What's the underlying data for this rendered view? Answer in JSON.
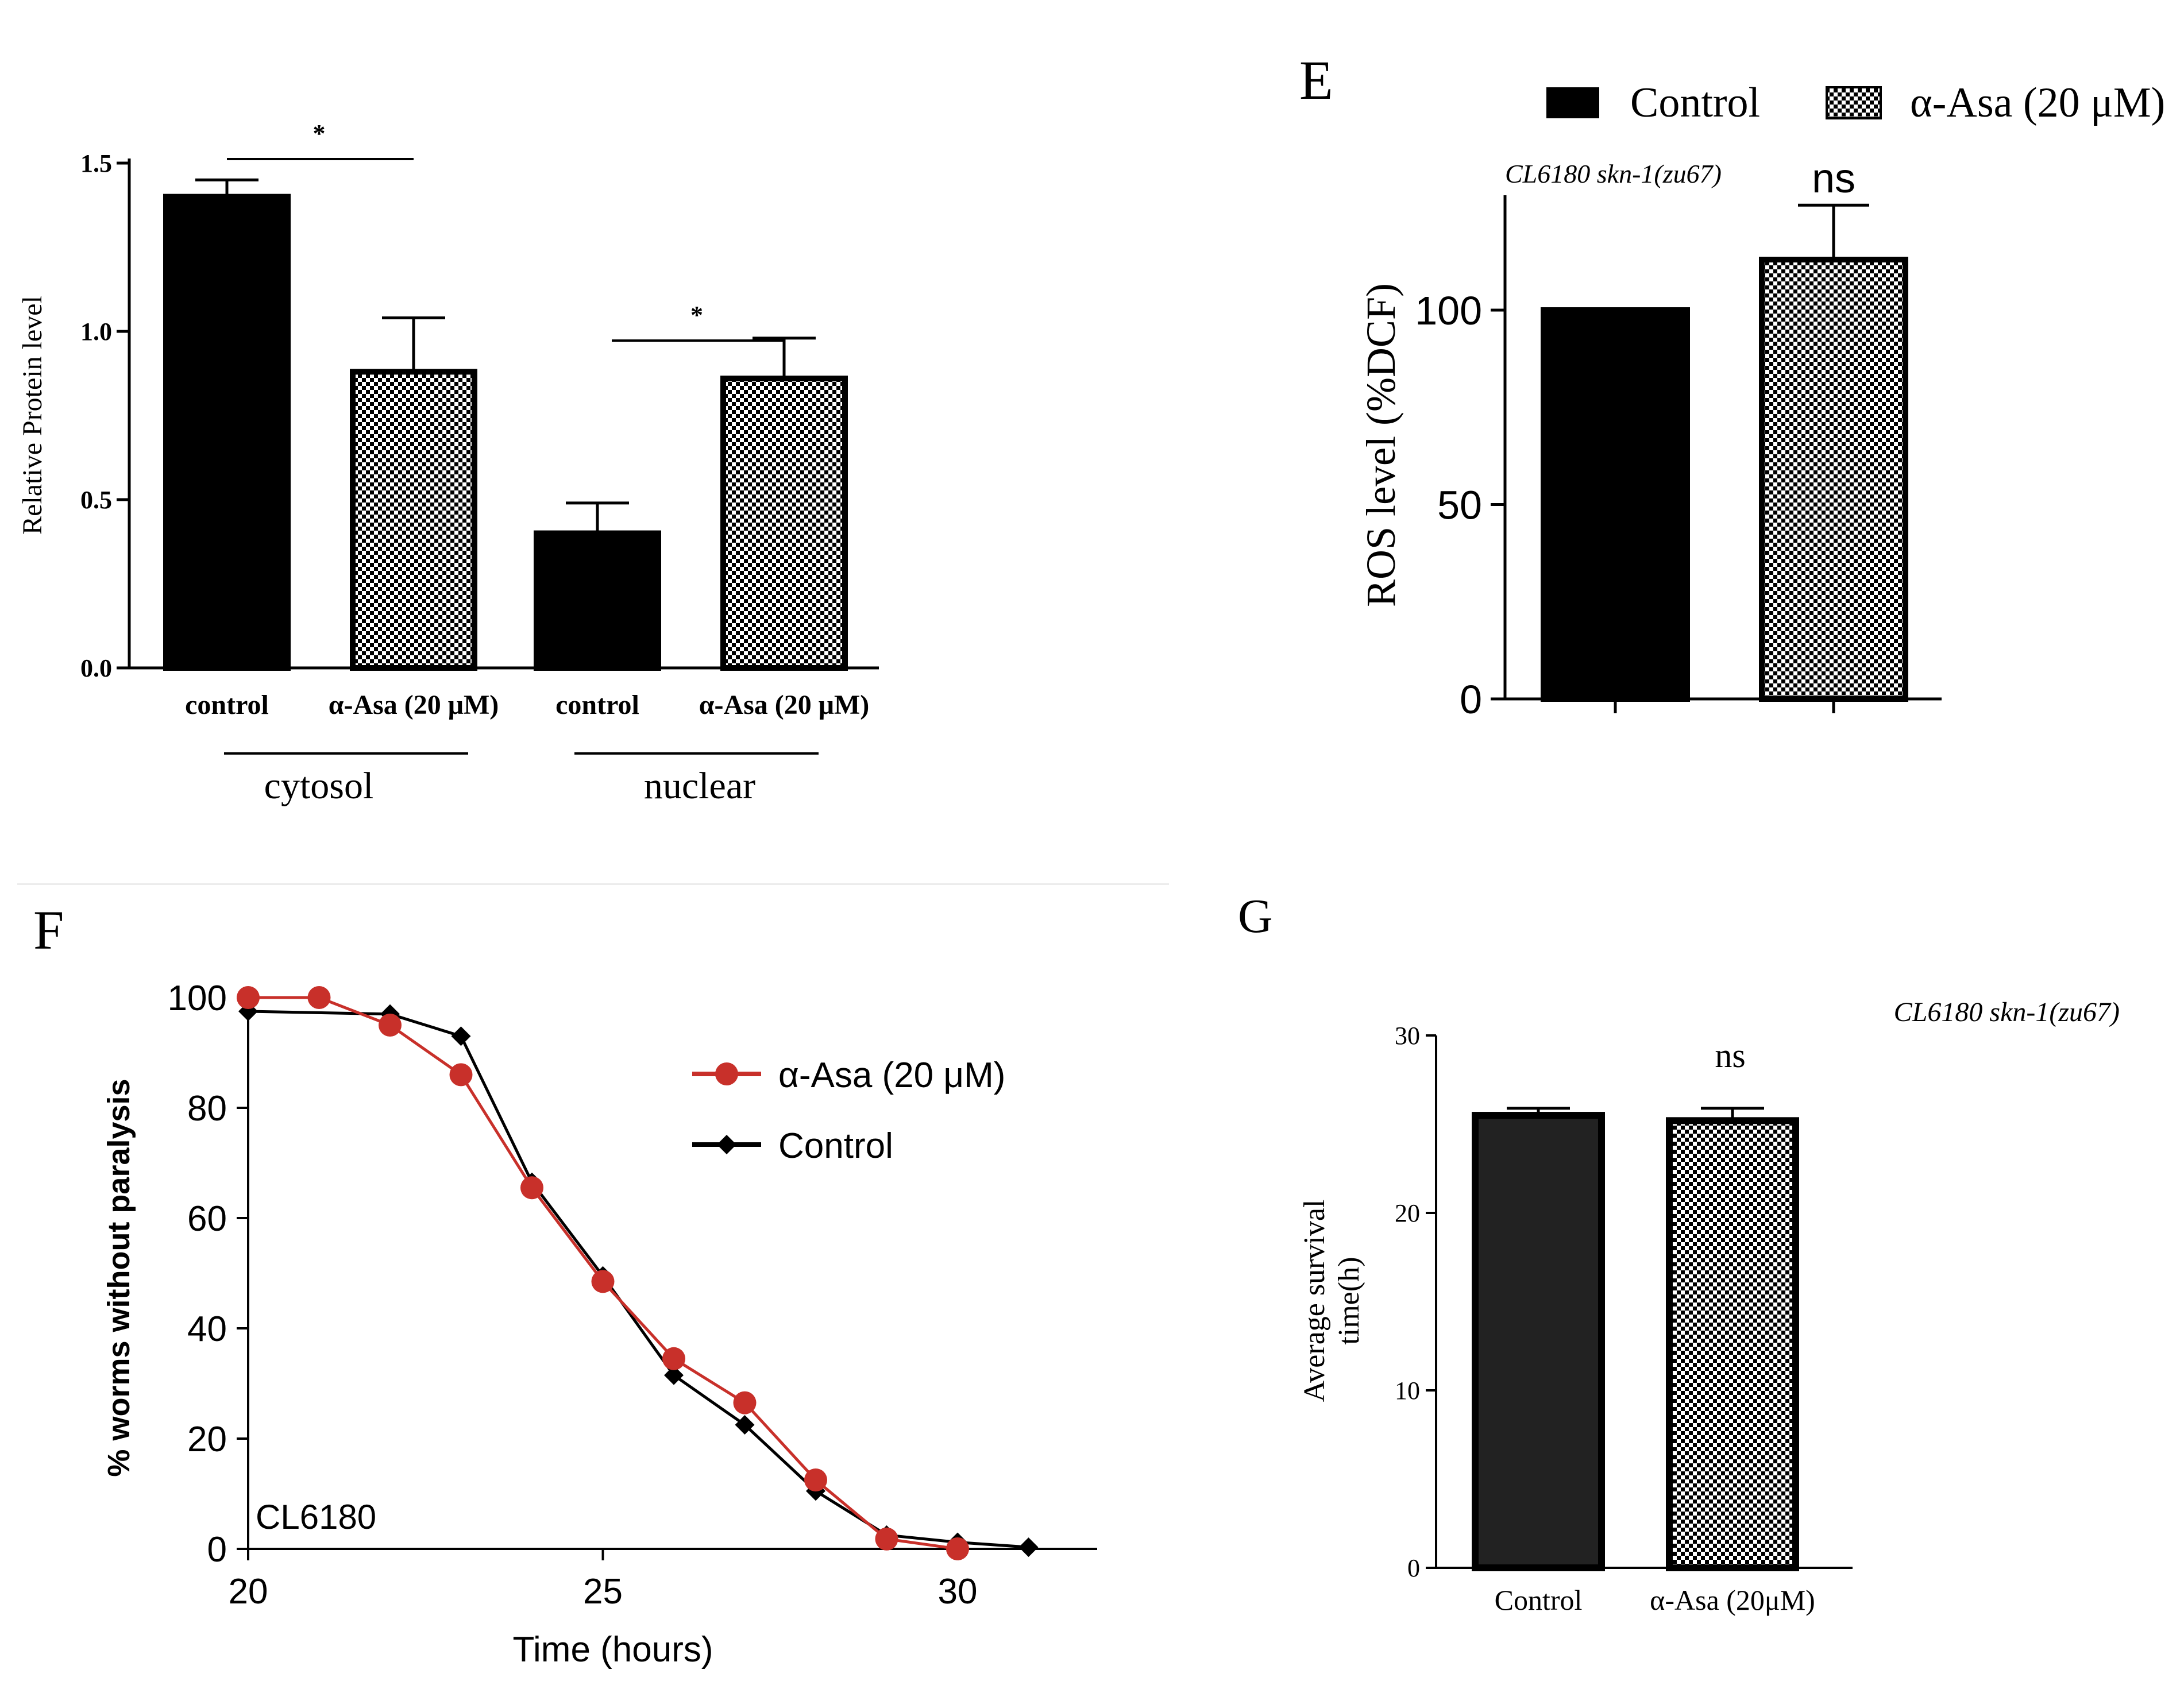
{
  "chart_data": [
    {
      "panel": "",
      "type": "bar",
      "title": "",
      "ylabel": "Relative Protein level",
      "xlabel": "",
      "ylim": [
        0,
        1.5
      ],
      "yticks": [
        "0.0",
        "0.5",
        "1.0",
        "1.5"
      ],
      "categories": [
        "control",
        "α-Asa (20 μM)",
        "control",
        "α-Asa (20 μM)"
      ],
      "groups": [
        "cytosol",
        "nuclear"
      ],
      "values": [
        1.4,
        0.88,
        0.4,
        0.86
      ],
      "errors": [
        0.05,
        0.16,
        0.09,
        0.12
      ],
      "patterns": [
        "solid",
        "checker",
        "solid",
        "checker"
      ],
      "significance": [
        "*",
        "*"
      ],
      "grid": false
    },
    {
      "panel": "E",
      "type": "bar",
      "subtitle": "CL6180 skn-1(zu67)",
      "ylabel": "ROS level (%DCF)",
      "xlabel": "",
      "ylim": [
        0,
        130
      ],
      "yticks": [
        "0",
        "50",
        "100"
      ],
      "categories": [
        "Control",
        "α-Asa (20 μM)"
      ],
      "values": [
        100,
        113
      ],
      "errors": [
        0,
        14
      ],
      "patterns": [
        "solid",
        "checker"
      ],
      "legend": [
        "Control",
        "α-Asa (20 μM)"
      ],
      "legend_position": "top",
      "significance": "ns",
      "grid": false
    },
    {
      "panel": "F",
      "type": "line",
      "annotation": "CL6180",
      "xlabel": "Time (hours)",
      "ylabel": "% worms without paralysis",
      "xlim": [
        20,
        32
      ],
      "ylim": [
        0,
        100
      ],
      "xticks": [
        "20",
        "25",
        "30"
      ],
      "yticks": [
        "0",
        "20",
        "40",
        "60",
        "80",
        "100"
      ],
      "legend_position": "top-right",
      "series": [
        {
          "name": "α-Asa (20 μM)",
          "color": "#c8302a",
          "marker": "circle",
          "x": [
            20,
            21,
            22,
            23,
            24,
            25,
            26,
            27,
            28,
            29,
            30
          ],
          "y": [
            100,
            100,
            95,
            86,
            65.5,
            48.5,
            34.5,
            26.5,
            12.5,
            1.8,
            0
          ]
        },
        {
          "name": "Control",
          "color": "#000000",
          "marker": "diamond",
          "x": [
            20,
            22,
            23,
            24,
            25,
            26,
            27,
            28,
            29,
            30,
            31
          ],
          "y": [
            97.5,
            97,
            93,
            66.5,
            49.5,
            31.5,
            22.5,
            10.5,
            2.5,
            1.2,
            0.3
          ]
        }
      ],
      "grid": false
    },
    {
      "panel": "G",
      "type": "bar",
      "subtitle": "CL6180 skn-1(zu67)",
      "ylabel": "Average survival time(h)",
      "xlabel": "",
      "ylim": [
        0,
        30
      ],
      "yticks": [
        "0",
        "10",
        "20",
        "30"
      ],
      "categories": [
        "Control",
        "α-Asa (20μM)"
      ],
      "values": [
        25.5,
        25.2
      ],
      "errors": [
        0.4,
        0.7
      ],
      "patterns": [
        "solid",
        "checker"
      ],
      "significance": "ns",
      "grid": false
    }
  ]
}
